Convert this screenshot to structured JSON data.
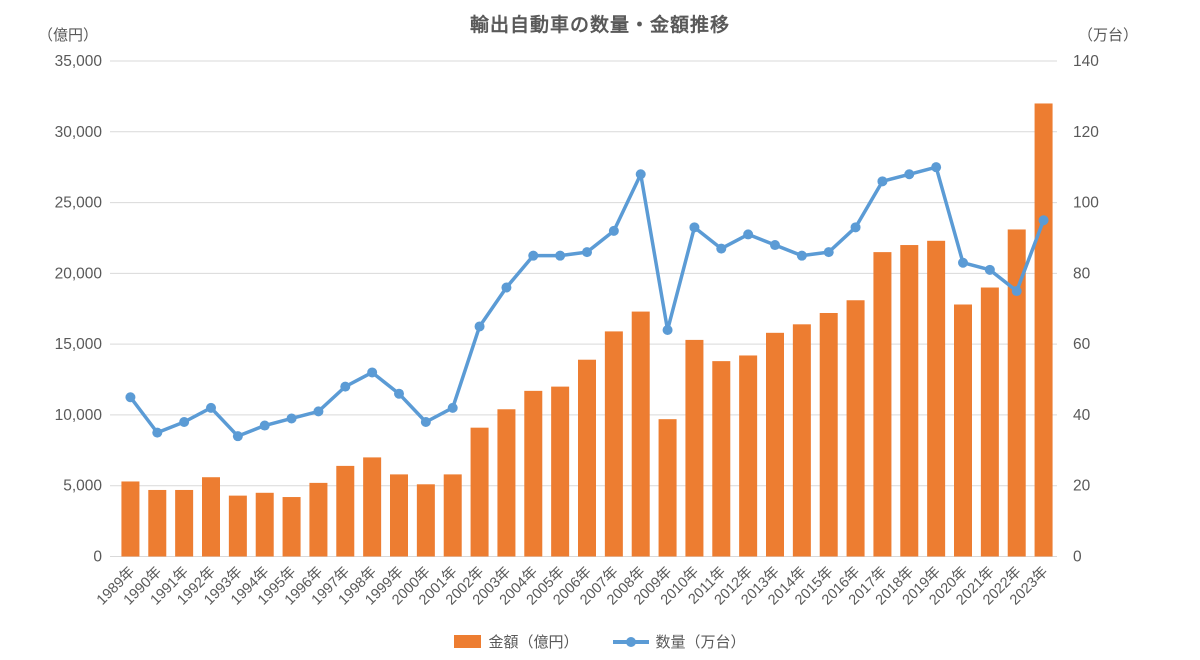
{
  "title": "輸出自動車の数量・金額推移",
  "legend": [
    {
      "label": "金額（億円）",
      "type": "bar",
      "color": "#ED7D31"
    },
    {
      "label": "数量（万台）",
      "type": "line",
      "color": "#5B9BD5"
    }
  ],
  "colors": {
    "bar": "#ED7D31",
    "line": "#5B9BD5",
    "grid": "#D9D9D9",
    "text": "#595959"
  },
  "chart_data": {
    "type": "combo-bar-line",
    "title": "輸出自動車の数量・金額推移",
    "categories": [
      "1989年",
      "1990年",
      "1991年",
      "1992年",
      "1993年",
      "1994年",
      "1995年",
      "1996年",
      "1997年",
      "1998年",
      "1999年",
      "2000年",
      "2001年",
      "2002年",
      "2003年",
      "2004年",
      "2005年",
      "2006年",
      "2007年",
      "2008年",
      "2009年",
      "2010年",
      "2011年",
      "2012年",
      "2013年",
      "2014年",
      "2015年",
      "2016年",
      "2017年",
      "2018年",
      "2019年",
      "2020年",
      "2021年",
      "2022年",
      "2023年"
    ],
    "series": [
      {
        "name": "金額（億円）",
        "type": "bar",
        "axis": "left",
        "color": "#ED7D31",
        "values": [
          5300,
          4700,
          4700,
          5600,
          4300,
          4500,
          4200,
          5200,
          6400,
          7000,
          5800,
          5100,
          5800,
          9100,
          10400,
          11700,
          12000,
          13900,
          15900,
          17300,
          9700,
          15300,
          13800,
          14200,
          15800,
          16400,
          17200,
          18100,
          21500,
          22000,
          22300,
          17800,
          19000,
          23100,
          32000
        ]
      },
      {
        "name": "数量（万台）",
        "type": "line",
        "axis": "right",
        "color": "#5B9BD5",
        "values": [
          45,
          35,
          38,
          42,
          34,
          37,
          39,
          41,
          48,
          52,
          46,
          38,
          42,
          65,
          76,
          85,
          85,
          86,
          92,
          108,
          64,
          93,
          87,
          91,
          88,
          85,
          86,
          93,
          106,
          108,
          110,
          83,
          81,
          75,
          95
        ]
      }
    ],
    "left_axis": {
      "label": "（億円）",
      "min": 0,
      "max": 35000,
      "step": 5000,
      "ticks": [
        "0",
        "5,000",
        "10,000",
        "15,000",
        "20,000",
        "25,000",
        "30,000",
        "35,000"
      ]
    },
    "right_axis": {
      "label": "（万台）",
      "min": 0,
      "max": 140,
      "step": 20,
      "ticks": [
        "0",
        "20",
        "40",
        "60",
        "80",
        "100",
        "120",
        "140"
      ]
    },
    "grid": true,
    "legend_position": "bottom"
  }
}
